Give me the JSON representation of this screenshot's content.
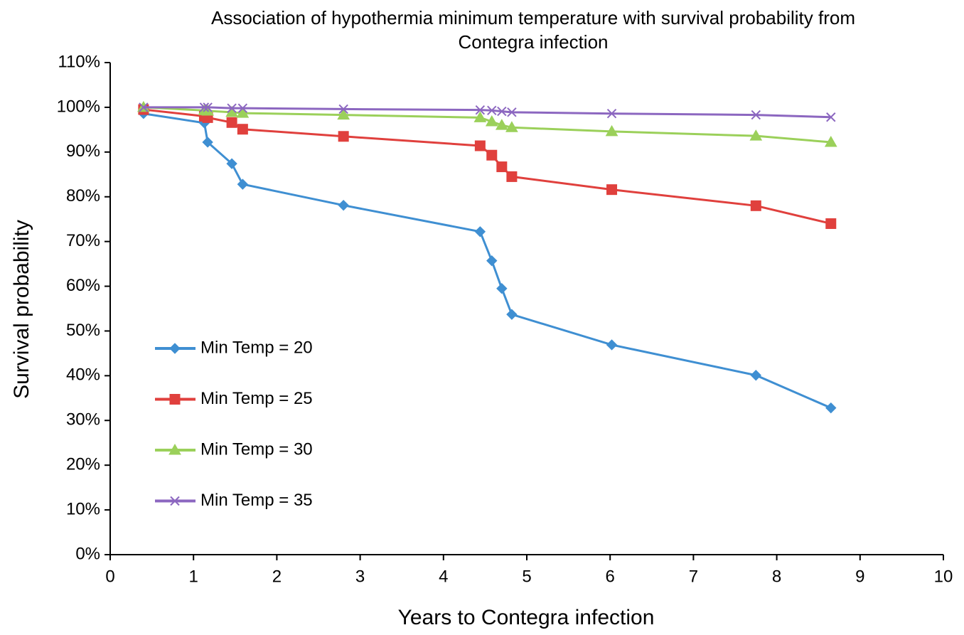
{
  "chart_data": {
    "type": "line",
    "title": "Association of hypothermia minimum temperature with survival probability from Contegra infection",
    "x_label": "Years to Contegra infection",
    "y_label": "Survival probability",
    "x": [
      0.4,
      1.13,
      1.17,
      1.46,
      1.59,
      2.8,
      4.44,
      4.58,
      4.7,
      4.82,
      6.02,
      7.75,
      8.65
    ],
    "series": [
      {
        "name": "Min Temp = 20",
        "color": "#3f8fd2",
        "marker": "diamond",
        "values": [
          98.6,
          96.5,
          92.2,
          87.4,
          82.8,
          78.1,
          72.2,
          65.7,
          59.5,
          53.7,
          46.9,
          40.1,
          32.8
        ]
      },
      {
        "name": "Min Temp = 25",
        "color": "#e0403d",
        "marker": "square",
        "values": [
          99.5,
          98.0,
          97.7,
          96.6,
          95.1,
          93.5,
          91.4,
          89.3,
          86.7,
          84.5,
          81.6,
          78.0,
          74.0
        ]
      },
      {
        "name": "Min Temp = 30",
        "color": "#9bd05a",
        "marker": "triangle",
        "values": [
          100,
          99.3,
          99.2,
          98.9,
          98.7,
          98.3,
          97.7,
          96.8,
          96.0,
          95.5,
          94.6,
          93.6,
          92.2
        ]
      },
      {
        "name": "Min Temp = 35",
        "color": "#8c67c0",
        "marker": "x",
        "values": [
          100,
          100,
          100,
          99.8,
          99.8,
          99.6,
          99.4,
          99.3,
          99.1,
          98.9,
          98.6,
          98.3,
          97.8
        ]
      }
    ],
    "xlim": [
      0,
      10
    ],
    "xticks": [
      0,
      1,
      2,
      3,
      4,
      5,
      6,
      7,
      8,
      9,
      10
    ],
    "ylim": [
      0,
      110
    ],
    "yticks": [
      {
        "value": 0,
        "label": "0%"
      },
      {
        "value": 10,
        "label": "10%"
      },
      {
        "value": 20,
        "label": "20%"
      },
      {
        "value": 30,
        "label": "30%"
      },
      {
        "value": 40,
        "label": "40%"
      },
      {
        "value": 50,
        "label": "50%"
      },
      {
        "value": 60,
        "label": "60%"
      },
      {
        "value": 70,
        "label": "70%"
      },
      {
        "value": 80,
        "label": "80%"
      },
      {
        "value": 90,
        "label": "90%"
      },
      {
        "value": 100,
        "label": "100%"
      },
      {
        "value": 110,
        "label": "110%"
      }
    ],
    "grid": false,
    "legend": "left"
  }
}
